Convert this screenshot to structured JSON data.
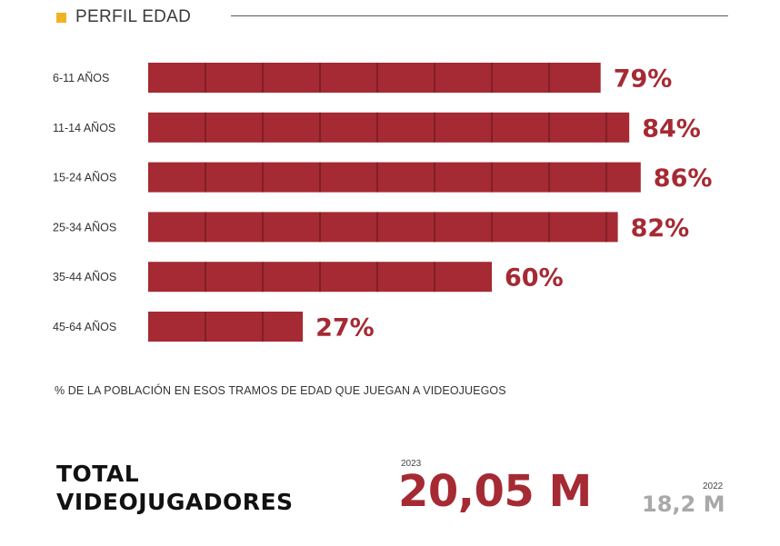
{
  "header": {
    "title": "PERFIL EDAD"
  },
  "colors": {
    "bar": "#a52a33",
    "value_text": "#a52a33",
    "accent_square": "#f0b323",
    "divider": "#5a5a5a",
    "secondary_value": "#a9a9a9"
  },
  "chart_data": {
    "type": "bar",
    "orientation": "horizontal",
    "categories": [
      "6-11 AÑOS",
      "11-14 AÑOS",
      "15-24 AÑOS",
      "25-34 AÑOS",
      "35-44 AÑOS",
      "45-64 AÑOS"
    ],
    "values": [
      79,
      84,
      86,
      82,
      60,
      27
    ],
    "value_labels": [
      "79%",
      "84%",
      "86%",
      "82%",
      "60%",
      "27%"
    ],
    "unit": "%",
    "xlim": [
      0,
      100
    ],
    "grid": false,
    "legend": "none"
  },
  "caption": "% DE LA POBLACIÓN EN ESOS TRAMOS DE EDAD QUE JUEGAN A VIDEOJUEGOS",
  "totals": {
    "title_line1": "TOTAL",
    "title_line2": "VIDEOJUGADORES",
    "current": {
      "year": "2023",
      "value": "20,05 M"
    },
    "previous": {
      "year": "2022",
      "value": "18,2 M"
    }
  }
}
